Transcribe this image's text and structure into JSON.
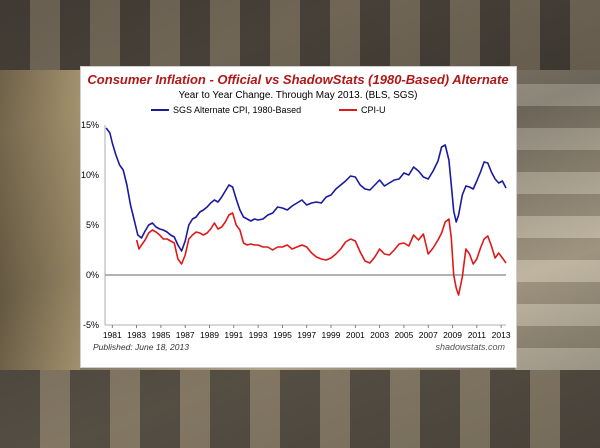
{
  "title": "Consumer Inflation - Official vs ShadowStats (1980-Based) Alternate",
  "subtitle": "Year to Year Change. Through May 2013.   (BLS, SGS)",
  "published": "Published: June 18, 2013",
  "site": "shadowstats.com",
  "colors": {
    "sgs": "#1a1a9e",
    "cpi": "#e01818",
    "zero": "#666666"
  },
  "chart_data": {
    "type": "line",
    "title": "Consumer Inflation - Official vs ShadowStats (1980-Based) Alternate",
    "subtitle": "Year to Year Change. Through May 2013.   (BLS, SGS)",
    "ylim": [
      -5,
      15
    ],
    "yticks": [
      "15%",
      "10%",
      "5%",
      "0%",
      "-5%"
    ],
    "ytick_values": [
      15,
      10,
      5,
      0,
      -5
    ],
    "xlim": [
      1980.4,
      2013.4
    ],
    "xticks": [
      "1981",
      "1983",
      "1985",
      "1987",
      "1989",
      "1991",
      "1993",
      "1995",
      "1997",
      "1999",
      "2001",
      "2003",
      "2005",
      "2007",
      "2009",
      "2011",
      "2013"
    ],
    "xtick_values": [
      1981,
      1983,
      1985,
      1987,
      1989,
      1991,
      1993,
      1995,
      1997,
      1999,
      2001,
      2003,
      2005,
      2007,
      2009,
      2011,
      2013
    ],
    "legend": "top",
    "series": [
      {
        "name": "SGS Alternate CPI, 1980-Based",
        "color": "#1a1a9e",
        "x": [
          1980.5,
          1980.8,
          1981.0,
          1981.3,
          1981.6,
          1981.9,
          1982.2,
          1982.5,
          1982.8,
          1983.1,
          1983.4,
          1983.7,
          1984.0,
          1984.3,
          1984.6,
          1984.9,
          1985.2,
          1985.5,
          1985.8,
          1986.1,
          1986.4,
          1986.7,
          1987.0,
          1987.3,
          1987.6,
          1987.9,
          1988.2,
          1988.5,
          1988.8,
          1989.1,
          1989.4,
          1989.7,
          1990.0,
          1990.3,
          1990.6,
          1990.9,
          1991.2,
          1991.5,
          1991.8,
          1992.1,
          1992.4,
          1992.7,
          1993.0,
          1993.4,
          1993.8,
          1994.2,
          1994.6,
          1995.0,
          1995.4,
          1995.8,
          1996.2,
          1996.6,
          1997.0,
          1997.4,
          1997.8,
          1998.2,
          1998.6,
          1999.0,
          1999.4,
          1999.8,
          2000.2,
          2000.6,
          2001.0,
          2001.4,
          2001.8,
          2002.2,
          2002.6,
          2003.0,
          2003.4,
          2003.8,
          2004.2,
          2004.6,
          2005.0,
          2005.4,
          2005.8,
          2006.2,
          2006.6,
          2007.0,
          2007.4,
          2007.8,
          2008.1,
          2008.4,
          2008.7,
          2008.9,
          2009.1,
          2009.3,
          2009.5,
          2009.8,
          2010.1,
          2010.4,
          2010.7,
          2011.0,
          2011.3,
          2011.6,
          2011.9,
          2012.2,
          2012.5,
          2012.8,
          2013.1,
          2013.4
        ],
        "y": [
          14.7,
          14.2,
          13.2,
          12.0,
          11.0,
          10.5,
          9.0,
          7.0,
          5.5,
          4.0,
          3.7,
          4.4,
          5.0,
          5.2,
          4.8,
          4.6,
          4.5,
          4.3,
          4.0,
          3.8,
          3.0,
          2.4,
          3.4,
          5.0,
          5.6,
          5.8,
          6.3,
          6.5,
          6.8,
          7.2,
          7.5,
          7.3,
          7.8,
          8.4,
          9.0,
          8.8,
          7.6,
          6.5,
          5.8,
          5.6,
          5.4,
          5.6,
          5.5,
          5.6,
          6.0,
          6.2,
          6.8,
          6.7,
          6.5,
          6.9,
          7.2,
          7.5,
          7.0,
          7.2,
          7.3,
          7.2,
          7.8,
          8.0,
          8.6,
          9.0,
          9.4,
          9.9,
          9.8,
          9.0,
          8.6,
          8.5,
          9.0,
          9.5,
          8.9,
          9.2,
          9.5,
          9.6,
          10.2,
          10.0,
          10.8,
          10.4,
          9.8,
          9.6,
          10.4,
          11.4,
          12.8,
          13.0,
          11.5,
          9.0,
          6.4,
          5.3,
          6.0,
          8.0,
          8.9,
          8.8,
          8.6,
          9.4,
          10.3,
          11.3,
          11.2,
          10.3,
          9.6,
          9.2,
          9.4,
          8.7
        ]
      },
      {
        "name": "CPI-U",
        "color": "#e01818",
        "x": [
          1983.0,
          1983.2,
          1983.4,
          1983.7,
          1984.0,
          1984.3,
          1984.6,
          1984.9,
          1985.2,
          1985.5,
          1985.8,
          1986.1,
          1986.4,
          1986.7,
          1987.0,
          1987.3,
          1987.6,
          1987.9,
          1988.2,
          1988.5,
          1988.8,
          1989.1,
          1989.4,
          1989.7,
          1990.0,
          1990.3,
          1990.6,
          1990.9,
          1991.2,
          1991.5,
          1991.8,
          1992.1,
          1992.4,
          1992.7,
          1993.0,
          1993.4,
          1993.8,
          1994.2,
          1994.6,
          1995.0,
          1995.4,
          1995.8,
          1996.2,
          1996.6,
          1997.0,
          1997.4,
          1997.8,
          1998.2,
          1998.6,
          1999.0,
          1999.4,
          1999.8,
          2000.2,
          2000.6,
          2001.0,
          2001.4,
          2001.8,
          2002.2,
          2002.6,
          2003.0,
          2003.4,
          2003.8,
          2004.2,
          2004.6,
          2005.0,
          2005.4,
          2005.8,
          2006.2,
          2006.6,
          2007.0,
          2007.4,
          2007.8,
          2008.1,
          2008.4,
          2008.7,
          2008.9,
          2009.1,
          2009.3,
          2009.5,
          2009.8,
          2010.1,
          2010.4,
          2010.7,
          2011.0,
          2011.3,
          2011.6,
          2011.9,
          2012.2,
          2012.5,
          2012.8,
          2013.1,
          2013.4
        ],
        "y": [
          3.5,
          2.6,
          3.0,
          3.5,
          4.2,
          4.5,
          4.3,
          4.0,
          3.6,
          3.6,
          3.4,
          3.2,
          1.6,
          1.1,
          2.0,
          3.6,
          4.0,
          4.3,
          4.2,
          4.0,
          4.2,
          4.6,
          5.2,
          4.6,
          4.8,
          5.3,
          6.0,
          6.2,
          5.0,
          4.5,
          3.2,
          3.0,
          3.1,
          3.0,
          3.0,
          2.8,
          2.8,
          2.5,
          2.8,
          2.8,
          3.0,
          2.6,
          2.8,
          3.0,
          2.8,
          2.2,
          1.8,
          1.6,
          1.5,
          1.7,
          2.1,
          2.6,
          3.3,
          3.6,
          3.4,
          2.3,
          1.4,
          1.2,
          1.8,
          2.6,
          2.1,
          2.0,
          2.5,
          3.1,
          3.2,
          2.9,
          4.0,
          3.5,
          4.1,
          2.1,
          2.7,
          3.5,
          4.2,
          5.3,
          5.6,
          3.7,
          0.0,
          -1.3,
          -2.0,
          -0.2,
          2.6,
          2.1,
          1.1,
          1.6,
          2.7,
          3.6,
          3.9,
          2.9,
          1.7,
          2.2,
          1.7,
          1.2
        ]
      }
    ]
  }
}
